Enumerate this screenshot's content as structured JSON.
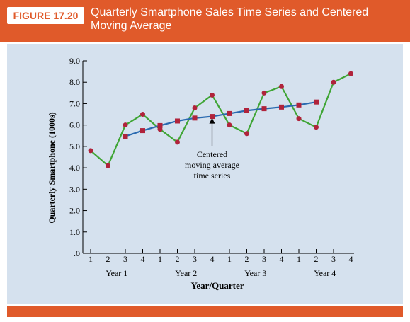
{
  "figure": {
    "label": "FIGURE 17.20",
    "title": "Quarterly Smartphone Sales Time Series and Centered Moving Average"
  },
  "colors": {
    "header": "#e05a2a",
    "panel": "#d5e1ee",
    "series_line": "#3fa535",
    "series_marker": "#b0233b",
    "ma_line": "#2a6ab0",
    "ma_marker": "#b0233b"
  },
  "chart_data": {
    "type": "line",
    "xlabel": "Year/Quarter",
    "ylabel": "Quarterly Smartphone (1000s)",
    "ylim": [
      0,
      9
    ],
    "yticks": [
      ".0",
      "1.0",
      "2.0",
      "3.0",
      "4.0",
      "5.0",
      "6.0",
      "7.0",
      "8.0",
      "9.0"
    ],
    "x_tick_labels": [
      "1",
      "2",
      "3",
      "4",
      "1",
      "2",
      "3",
      "4",
      "1",
      "2",
      "3",
      "4",
      "1",
      "2",
      "3",
      "4"
    ],
    "year_labels": [
      "Year 1",
      "Year 2",
      "Year 3",
      "Year 4"
    ],
    "annotation": "Centered moving average time series",
    "annotation_lines": [
      "Centered",
      "moving average",
      "time series"
    ],
    "series": [
      {
        "marker": "circle",
        "values": [
          4.8,
          4.1,
          6.0,
          6.5,
          5.8,
          5.2,
          6.8,
          7.4,
          6.0,
          5.6,
          7.5,
          7.8,
          6.3,
          5.9,
          8.0,
          8.4
        ]
      },
      {
        "marker": "square",
        "x_index_start": 2,
        "values": [
          5.475,
          5.738,
          5.975,
          6.188,
          6.325,
          6.4,
          6.538,
          6.675,
          6.763,
          6.838,
          6.938,
          7.075
        ]
      }
    ],
    "grid": false
  }
}
